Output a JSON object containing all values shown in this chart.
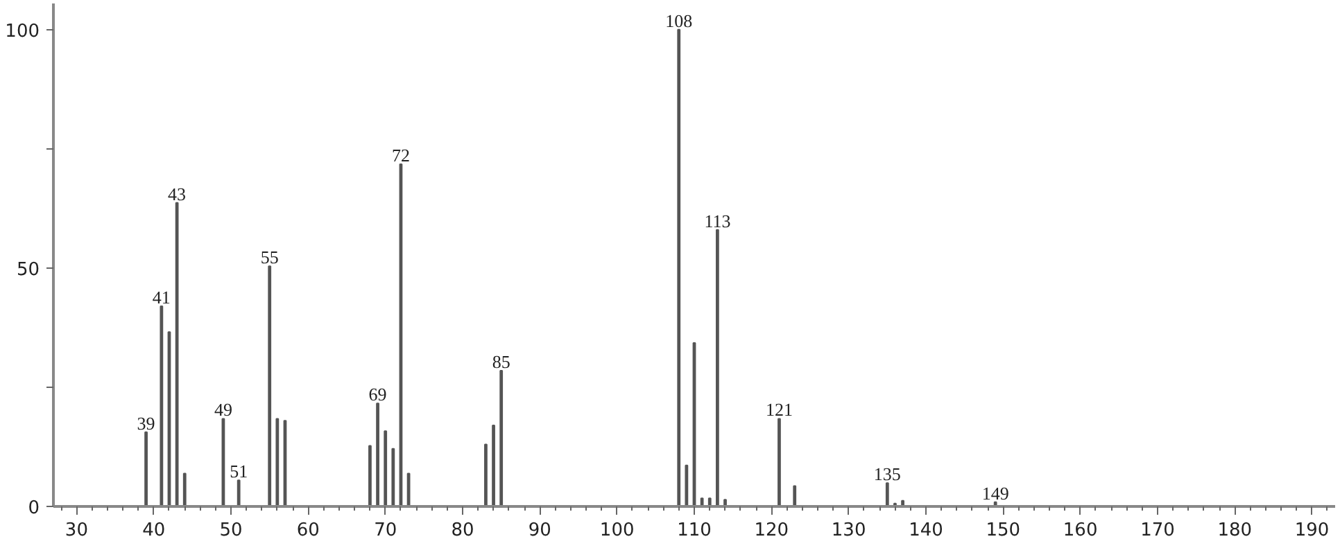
{
  "chart_data": {
    "type": "bar",
    "x": [
      39,
      41,
      42,
      43,
      44,
      49,
      51,
      55,
      56,
      57,
      68,
      69,
      70,
      71,
      72,
      73,
      83,
      84,
      85,
      108,
      109,
      110,
      111,
      112,
      113,
      114,
      121,
      123,
      135,
      136,
      137,
      149
    ],
    "values": [
      15.6,
      42,
      36.6,
      63.7,
      6.9,
      18.4,
      5.5,
      50.4,
      18.4,
      18,
      12.7,
      21.6,
      15.8,
      12.1,
      71.8,
      6.9,
      13,
      17,
      28.5,
      100,
      8.6,
      34.3,
      1.7,
      1.7,
      58,
      1.4,
      18.4,
      4.3,
      4.9,
      0.6,
      1.2,
      0.9
    ],
    "color": "#555555",
    "xlim": [
      27,
      193
    ],
    "xticks": [
      30,
      40,
      50,
      60,
      70,
      80,
      90,
      100,
      110,
      120,
      130,
      140,
      150,
      160,
      170,
      180,
      190
    ],
    "ylim": [
      0,
      105.5
    ],
    "yticks": [
      0,
      {
        "value": 25,
        "label": null
      },
      50,
      {
        "value": 75,
        "label": null
      },
      100
    ],
    "grid": false,
    "annotations": [
      {
        "text": "39",
        "x": 39,
        "y": 15.6
      },
      {
        "text": "41",
        "x": 41,
        "y": 42
      },
      {
        "text": "43",
        "x": 43,
        "y": 63.7
      },
      {
        "text": "49",
        "x": 49,
        "y": 18.4
      },
      {
        "text": "51",
        "x": 51,
        "y": 5.5
      },
      {
        "text": "55",
        "x": 55,
        "y": 50.4
      },
      {
        "text": "69",
        "x": 69,
        "y": 21.6
      },
      {
        "text": "72",
        "x": 72,
        "y": 71.8
      },
      {
        "text": "85",
        "x": 85,
        "y": 28.5
      },
      {
        "text": "108",
        "x": 108,
        "y": 100
      },
      {
        "text": "113",
        "x": 113,
        "y": 58
      },
      {
        "text": "121",
        "x": 121,
        "y": 18.4
      },
      {
        "text": "135",
        "x": 135,
        "y": 4.9
      },
      {
        "text": "149",
        "x": 149,
        "y": 0.9
      }
    ]
  }
}
